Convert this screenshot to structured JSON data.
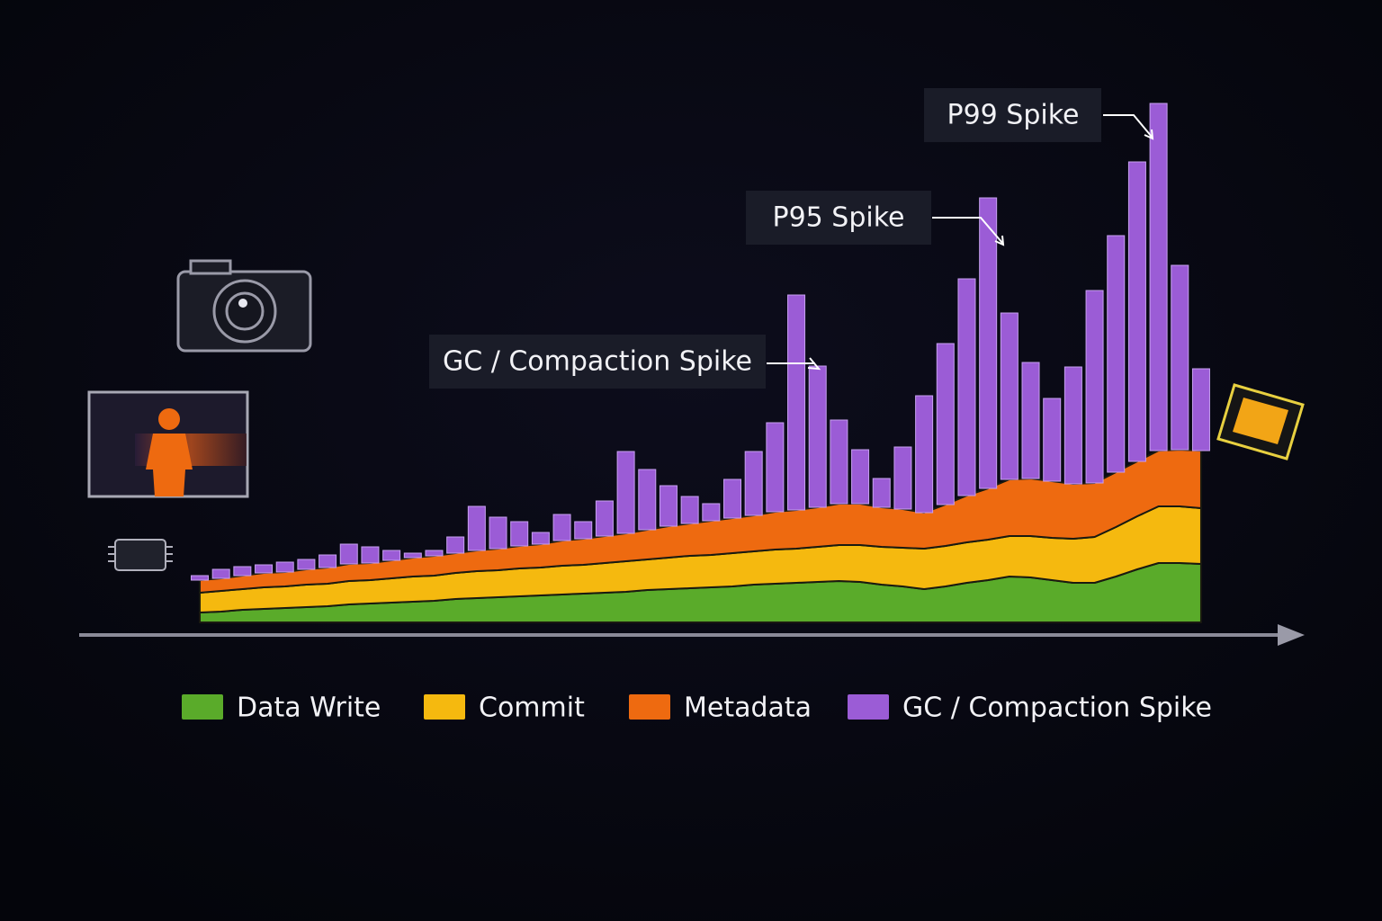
{
  "chart_data": {
    "type": "combo",
    "ylim": [
      0,
      600
    ],
    "categories": [
      null,
      null,
      null,
      null,
      null,
      null,
      null,
      null,
      null,
      null,
      null,
      null,
      null,
      null,
      null,
      null,
      null,
      null,
      null,
      null,
      null,
      null,
      null,
      null,
      null,
      null,
      null,
      null,
      null,
      null,
      null,
      null,
      null,
      null,
      null,
      null,
      null,
      null,
      null,
      null,
      null,
      null,
      null,
      null,
      null,
      null,
      null,
      null
    ],
    "series": [
      {
        "name": "Data Write",
        "type": "area",
        "color": "#5aab2a",
        "values": [
          11,
          12,
          14,
          15,
          16,
          17,
          18,
          20,
          21,
          22,
          23,
          24,
          26,
          27,
          28,
          29,
          30,
          31,
          32,
          33,
          34,
          36,
          37,
          38,
          39,
          40,
          42,
          43,
          44,
          45,
          46,
          45,
          42,
          40,
          37,
          40,
          44,
          47,
          51,
          50,
          47,
          44,
          44,
          51,
          59,
          66,
          66,
          65
        ]
      },
      {
        "name": "Commit",
        "type": "area",
        "color": "#f5b90f",
        "values": [
          22,
          23,
          23,
          24,
          24,
          25,
          25,
          26,
          26,
          27,
          28,
          28,
          29,
          30,
          30,
          31,
          31,
          32,
          32,
          33,
          34,
          34,
          35,
          36,
          36,
          37,
          37,
          38,
          38,
          39,
          40,
          41,
          42,
          43,
          45,
          45,
          45,
          45,
          45,
          46,
          47,
          49,
          51,
          55,
          59,
          63,
          63,
          62
        ]
      },
      {
        "name": "Metadata",
        "type": "area",
        "color": "#ee6a10",
        "values": [
          14,
          14,
          15,
          16,
          16,
          17,
          18,
          19,
          19,
          20,
          21,
          22,
          22,
          23,
          24,
          25,
          26,
          28,
          29,
          30,
          31,
          33,
          35,
          36,
          38,
          39,
          40,
          42,
          43,
          44,
          46,
          46,
          44,
          43,
          40,
          46,
          52,
          57,
          63,
          64,
          63,
          61,
          60,
          61,
          61,
          62,
          63,
          64
        ]
      },
      {
        "name": "GC / Compaction Spike",
        "type": "bar",
        "color": "#9b5cd6",
        "values": [
          5,
          10,
          10,
          9,
          11,
          11,
          14,
          22,
          18,
          11,
          5,
          6,
          18,
          49,
          35,
          27,
          13,
          29,
          19,
          39,
          91,
          67,
          45,
          30,
          19,
          43,
          71,
          99,
          239,
          157,
          93,
          60,
          32,
          69,
          130,
          179,
          241,
          323,
          185,
          129,
          92,
          130,
          214,
          263,
          333,
          386,
          205,
          91
        ]
      }
    ],
    "annotations": [
      {
        "text": "GC / Compaction Spike"
      },
      {
        "text": "P95 Spike"
      },
      {
        "text": "P99 Spike"
      }
    ]
  }
}
